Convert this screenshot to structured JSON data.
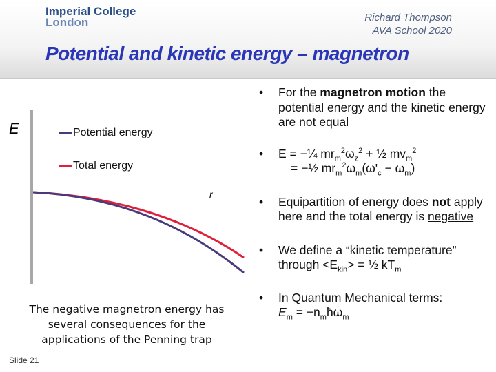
{
  "header": {
    "logo_line1": "Imperial College",
    "logo_line2": "London",
    "author": "Richard Thompson",
    "event": "AVA School 2020",
    "title": "Potential and kinetic energy – magnetron"
  },
  "plot": {
    "y_label": "E",
    "x_label": "r",
    "legend_potential": "Potential energy",
    "legend_total": "Total energy",
    "colors": {
      "potential": "#4a3a7a",
      "total": "#e0203a",
      "axis": "#a8a8a8"
    }
  },
  "note": "The negative magnetron energy has several consequences for the applications of the Penning trap",
  "slide_label": "Slide 21",
  "bullets": {
    "b1_pre": "For the ",
    "b1_bold": "magnetron motion",
    "b1_post": " the potential energy and the kinetic energy are not equal",
    "b2_line1_a": "E = −¼ mr",
    "b2_line1_b": "m",
    "b2_line1_c": "2",
    "b2_line1_d": "ω",
    "b2_line1_e": "z",
    "b2_line1_f": "2",
    "b2_line1_g": " + ½ mv",
    "b2_line1_h": "m",
    "b2_line1_i": "2",
    "b2_line2_a": "= −½ mr",
    "b2_line2_b": "m",
    "b2_line2_c": "2",
    "b2_line2_d": "ω",
    "b2_line2_e": "m",
    "b2_line2_f": "(ω'",
    "b2_line2_g": "c",
    "b2_line2_h": " − ω",
    "b2_line2_i": "m",
    "b2_line2_j": ")",
    "b3_pre": "Equipartition of energy does ",
    "b3_bold": "not",
    "b3_mid": " apply here and the total energy is ",
    "b3_u": "negative",
    "b4_pre": "We define a “kinetic temperature” through <E",
    "b4_sub": "kin",
    "b4_mid": "> = ½ kT",
    "b4_sub2": "m",
    "b5_line1": "In Quantum Mechanical terms:",
    "b5_a": "E",
    "b5_b": "m",
    "b5_c": " = −n",
    "b5_d": "m",
    "b5_e": "ħω",
    "b5_f": "m"
  }
}
